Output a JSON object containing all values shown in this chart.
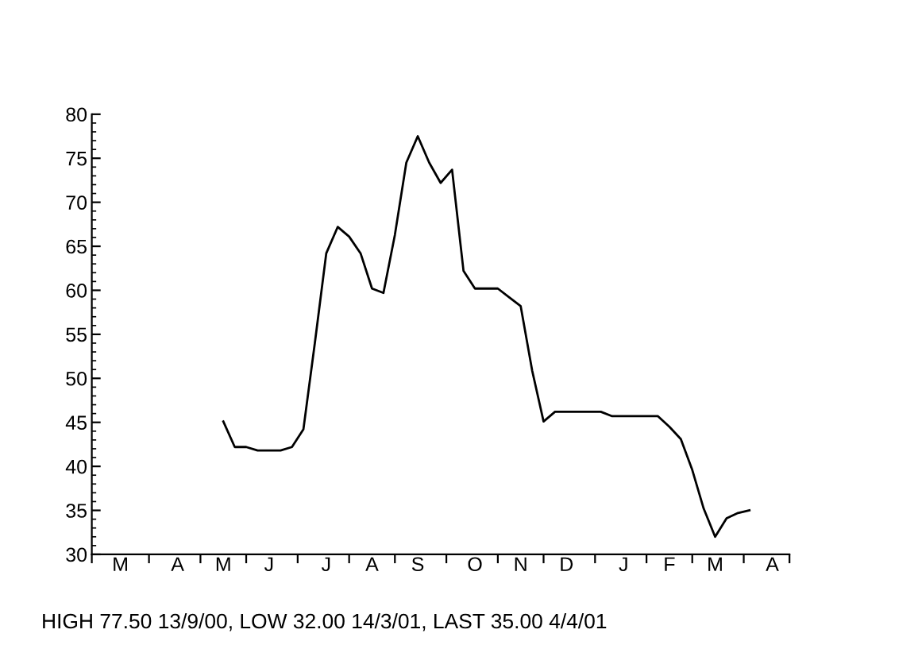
{
  "chart_data": {
    "type": "line",
    "categories": [
      null,
      null,
      "M",
      null,
      null,
      null,
      null,
      "A",
      null,
      null,
      null,
      "M",
      null,
      null,
      null,
      "J",
      null,
      null,
      null,
      null,
      "J",
      null,
      null,
      null,
      "A",
      null,
      null,
      null,
      "S",
      null,
      null,
      null,
      null,
      "O",
      null,
      null,
      null,
      "N",
      null,
      null,
      null,
      "D",
      null,
      null,
      null,
      null,
      "J",
      null,
      null,
      null,
      "F",
      null,
      null,
      null,
      "M",
      null,
      null,
      null,
      null,
      "A",
      null
    ],
    "series": [
      {
        "color": "#000000",
        "values": [
          null,
          null,
          null,
          null,
          null,
          null,
          null,
          null,
          null,
          null,
          null,
          45.1,
          42.2,
          42.2,
          41.8,
          41.8,
          41.8,
          42.2,
          44.2,
          54,
          64.2,
          67.2,
          66.1,
          64.2,
          60.2,
          59.7,
          66.3,
          74.5,
          77.5,
          74.5,
          72.2,
          73.7,
          62.2,
          60.2,
          60.2,
          60.2,
          59.2,
          58.2,
          50.9,
          45.1,
          46.2,
          46.2,
          46.2,
          46.2,
          46.2,
          45.7,
          45.7,
          45.7,
          45.7,
          45.7,
          44.5,
          43.1,
          39.6,
          35.2,
          32.0,
          34.1,
          34.7,
          35.0,
          null,
          null,
          null
        ]
      }
    ],
    "ylim": [
      30,
      80
    ],
    "yticks": [
      30,
      35,
      40,
      45,
      50,
      55,
      60,
      65,
      70,
      75,
      80
    ],
    "line_style": "solid",
    "annotations": [
      "HIGH 77.50 13/9/00, LOW 32.00 14/3/01, LAST 35.00 4/4/01"
    ]
  }
}
